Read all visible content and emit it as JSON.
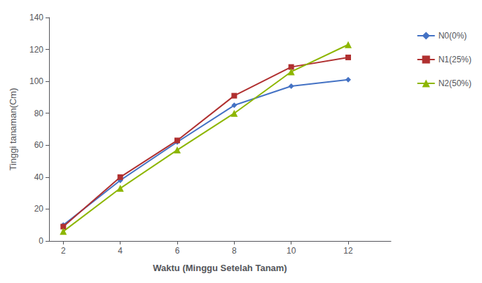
{
  "chart_data": {
    "type": "line",
    "x": [
      2,
      4,
      6,
      8,
      10,
      12
    ],
    "series": [
      {
        "name": "N0(0%)",
        "color": "#4472C4",
        "marker": "diamond",
        "values": [
          10,
          38,
          62,
          85,
          97,
          101
        ]
      },
      {
        "name": "N1(25%)",
        "color": "#B03030",
        "marker": "square",
        "values": [
          9,
          40,
          63,
          91,
          109,
          115
        ]
      },
      {
        "name": "N2(50%)",
        "color": "#8DB600",
        "marker": "triangle",
        "values": [
          6,
          33,
          57,
          80,
          106,
          123
        ]
      }
    ],
    "xlabel": "Waktu (Minggu Setelah Tanam)",
    "ylabel": "Tinggi tanaman(Cm)",
    "xlim": [
      1.5,
      13.5
    ],
    "ylim": [
      0,
      140
    ],
    "xticks": [
      2,
      4,
      6,
      8,
      10,
      12
    ],
    "yticks": [
      0,
      20,
      40,
      60,
      80,
      100,
      120,
      140
    ],
    "grid": false,
    "legend": "right"
  }
}
